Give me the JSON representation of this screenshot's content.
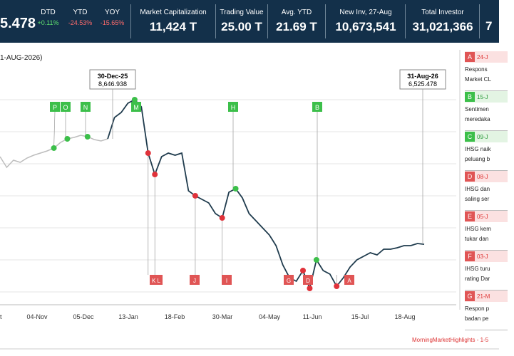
{
  "header": {
    "index": "5.478",
    "changes": [
      {
        "label": "DTD",
        "value": "+0.11%"
      },
      {
        "label": "YTD",
        "value": "-24.53%"
      },
      {
        "label": "YOY",
        "value": "-15.65%"
      }
    ],
    "stats": [
      {
        "label": "Market Capitalization",
        "value": "11,424 T"
      },
      {
        "label": "Trading Value",
        "value": "25.00 T"
      },
      {
        "label": "Avg. YTD",
        "value": "21.69 T"
      },
      {
        "label": "New Inv, 27-Aug",
        "value": "10,673,541"
      },
      {
        "label": "Total Investor",
        "value": "31,021,366"
      }
    ],
    "last": "7"
  },
  "chart_data": {
    "type": "line",
    "subtitle": "1-AUG-2026)",
    "x_labels": [
      "t",
      "04-Nov",
      "05-Dec",
      "13-Jan",
      "18-Feb",
      "30-Mar",
      "04-May",
      "11-Jun",
      "15-Jul",
      "18-Aug"
    ],
    "series": [
      {
        "name": "IHSG",
        "color": "#1f3b4d",
        "values": [
          8289,
          8074,
          8217,
          8174,
          8260,
          8317,
          8360,
          8403,
          8461,
          8575,
          8647,
          8676,
          8719,
          8690,
          8633,
          8604,
          8646.938,
          9077,
          9177,
          9364,
          9435,
          9292,
          8360,
          7930,
          8289,
          8360,
          8317,
          8360,
          7601,
          7501,
          7429,
          7357,
          7142,
          7056,
          7572,
          7644,
          7458,
          7142,
          6999,
          6856,
          6712,
          6497,
          6111,
          5853,
          5781,
          5996,
          5638,
          6211,
          5996,
          5924,
          5681,
          5853,
          6068,
          6211,
          6283,
          6354,
          6311,
          6426,
          6426,
          6455,
          6497,
          6497,
          6540,
          6525.478
        ]
      }
    ],
    "callouts": [
      {
        "date": "30-Dec-25",
        "label": "8,646.938"
      },
      {
        "date": "31-Aug-26",
        "label": "6,525.478"
      }
    ],
    "flags_up": [
      "P",
      "O",
      "N",
      "M",
      "H",
      "B"
    ],
    "flags_down": [
      "K L",
      "J",
      "I",
      "G",
      "D",
      "A"
    ]
  },
  "news": [
    {
      "letter": "A",
      "date": "24-J",
      "lines": [
        "Respons",
        "Market CL"
      ]
    },
    {
      "letter": "B",
      "date": "15-J",
      "lines": [
        "Sentimen",
        "meredaka"
      ]
    },
    {
      "letter": "C",
      "date": "09-J",
      "lines": [
        "IHSG naik",
        "peluang b"
      ]
    },
    {
      "letter": "D",
      "date": "08-J",
      "lines": [
        "IHSG dan",
        "saling ser"
      ]
    },
    {
      "letter": "E",
      "date": "05-J",
      "lines": [
        "IHSG kem",
        "tukar dan"
      ]
    },
    {
      "letter": "F",
      "date": "03-J",
      "lines": [
        "IHSG turu",
        "rating Dar"
      ]
    },
    {
      "letter": "G",
      "date": "21-M",
      "lines": [
        "Respon p",
        "badan pe"
      ]
    }
  ],
  "footer": "MorningMarketHighlights - 1-5"
}
